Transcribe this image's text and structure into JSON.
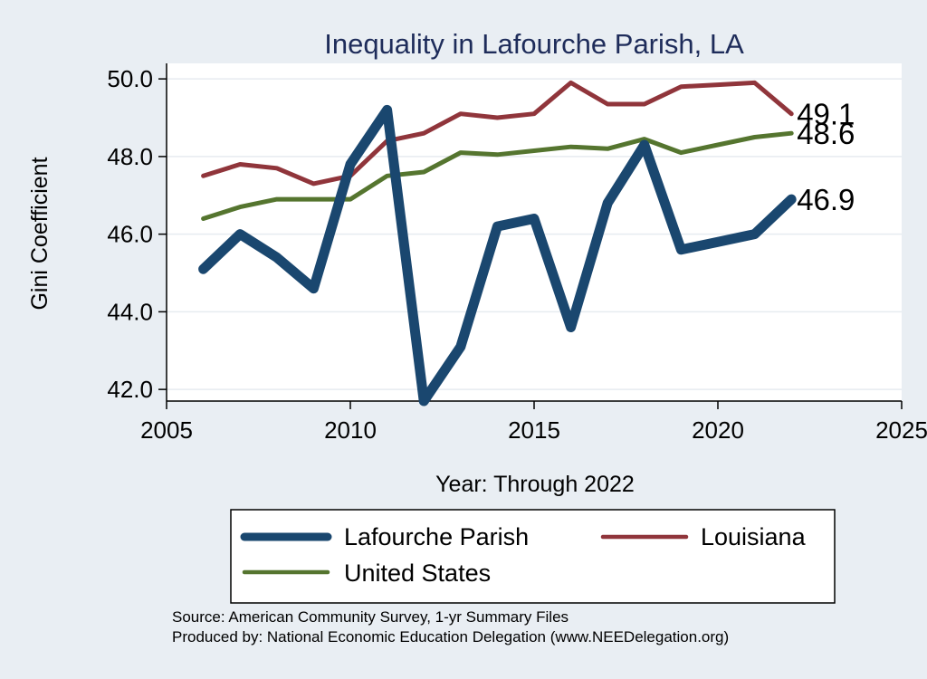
{
  "chart_data": {
    "type": "line",
    "title": "Inequality in Lafourche Parish, LA",
    "xlabel": "Year: Through 2022",
    "ylabel": "Gini Coefficient",
    "xlim": [
      2005,
      2025
    ],
    "ylim": [
      41.7,
      50.4
    ],
    "xticks": [
      2005,
      2010,
      2015,
      2020,
      2025
    ],
    "yticks": [
      42.0,
      44.0,
      46.0,
      48.0,
      50.0
    ],
    "ytick_labels": [
      "42.0",
      "44.0",
      "46.0",
      "48.0",
      "50.0"
    ],
    "grid": true,
    "legend_position": "bottom",
    "x": [
      2006,
      2007,
      2008,
      2009,
      2010,
      2011,
      2012,
      2013,
      2014,
      2015,
      2016,
      2017,
      2018,
      2019,
      2020,
      2021,
      2022
    ],
    "series": [
      {
        "name": "Lafourche Parish",
        "color": "#1a476f",
        "values": [
          45.1,
          46.0,
          45.4,
          44.6,
          47.8,
          49.2,
          41.7,
          43.1,
          46.2,
          46.4,
          43.6,
          46.8,
          48.3,
          45.6,
          45.8,
          46.0,
          46.9
        ],
        "end_label": "46.9"
      },
      {
        "name": "Louisiana",
        "color": "#90353b",
        "values": [
          47.5,
          47.8,
          47.7,
          47.3,
          47.5,
          48.4,
          48.6,
          49.1,
          49.0,
          49.1,
          49.9,
          49.35,
          49.35,
          49.8,
          49.85,
          49.9,
          49.1
        ],
        "end_label": "49.1"
      },
      {
        "name": "United States",
        "color": "#55752f",
        "values": [
          46.4,
          46.7,
          46.9,
          46.9,
          46.9,
          47.5,
          47.6,
          48.1,
          48.05,
          48.15,
          48.25,
          48.2,
          48.45,
          48.1,
          48.3,
          48.5,
          48.6
        ],
        "end_label": "48.6"
      }
    ],
    "source_lines": [
      "Source: American Community Survey, 1-yr Summary Files",
      "Produced by: National Economic Education Delegation (www.NEEDelegation.org)"
    ]
  }
}
